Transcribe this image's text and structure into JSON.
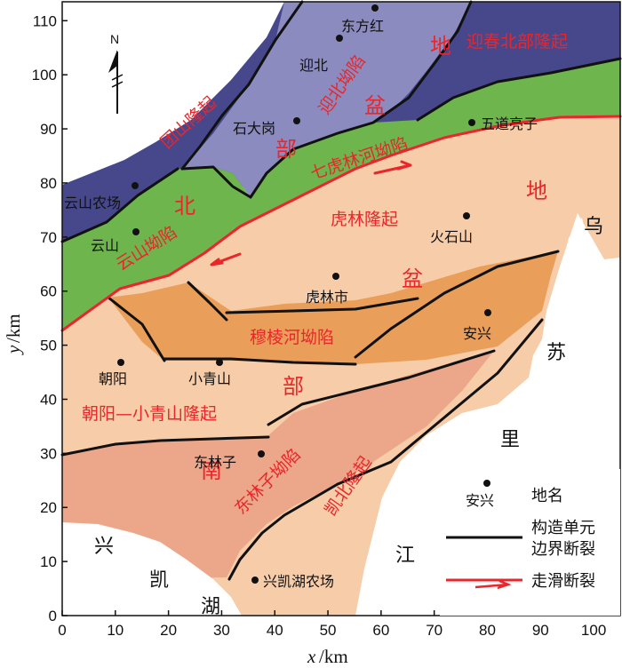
{
  "axes": {
    "x_title": "x",
    "x_unit": "/km",
    "y_title": "y",
    "y_unit": "/km",
    "x_ticks": [
      "0",
      "10",
      "20",
      "30",
      "40",
      "50",
      "60",
      "70",
      "80",
      "90",
      "100"
    ],
    "y_ticks": [
      "0",
      "10",
      "20",
      "30",
      "40",
      "50",
      "60",
      "70",
      "80",
      "90",
      "100",
      "110"
    ]
  },
  "north_arrow": {
    "label": "N"
  },
  "colors": {
    "tuanshan": "#47478c",
    "yingbei": "#8b8bbf",
    "green": "#6fb54e",
    "peach": "#f7cca8",
    "muleng": "#e99f5a",
    "donglinzi": "#eca78a",
    "structural_fault": "#111111",
    "strike_slip_fault": "#e8262b"
  },
  "units": {
    "tuanshan": "团山隆起",
    "yingbei": "迎北坳陷",
    "yingchun": "迎春北部隆起",
    "qihulin": "七虎林河坳陷",
    "yunshan": "云山坳陷",
    "hulin": "虎林隆起",
    "muleng": "穆棱河坳陷",
    "chaoyang": "朝阳—小青山隆起",
    "donglinzi": "东林子坳陷",
    "kaibei": "凯北隆起"
  },
  "basin_chars": [
    "北",
    "部",
    "盆",
    "地",
    "地",
    "盆",
    "部",
    "南"
  ],
  "places": {
    "dongfanghong": "东方红",
    "yingbei": "迎北",
    "shidagang": "石大岗",
    "wudaoliangzi": "五道亮子",
    "yunshan_farm": "云山农场",
    "yunshan": "云山",
    "huoshishan": "火石山",
    "hulin_city": "虎林市",
    "anxing": "安兴",
    "chaoyang": "朝阳",
    "xiaoqingshan": "小青山",
    "donglinzi": "东林子",
    "xingkaihu_farm": "兴凯湖农场"
  },
  "water": {
    "wu": "乌",
    "su": "苏",
    "li": "里",
    "jiang": "江",
    "xing": "兴",
    "kai": "凯",
    "hu": "湖"
  },
  "legend": {
    "sample_place": "安兴",
    "place_name": "地名",
    "boundary_fault_1": "构造单元",
    "boundary_fault_2": "边界断裂",
    "strike_slip": "走滑断裂"
  }
}
